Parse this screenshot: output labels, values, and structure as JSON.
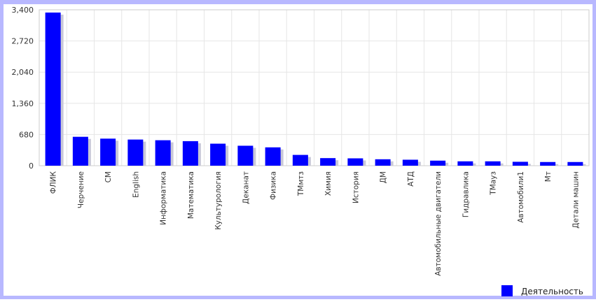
{
  "colors": {
    "border": "#b8b8ff",
    "bar": "#0000ff",
    "bar_shadow": "#c8c8d8",
    "grid": "#e6e6e6",
    "axis_text": "#333333"
  },
  "chart_data": {
    "type": "bar",
    "title": "",
    "xlabel": "",
    "ylabel": "",
    "ylim": [
      0,
      3400
    ],
    "yticks": [
      "0",
      "680",
      "1,360",
      "2,040",
      "2,720",
      "3,400"
    ],
    "ytick_values": [
      0,
      680,
      1360,
      2040,
      2720,
      3400
    ],
    "grid": true,
    "legend": "bottom-right",
    "categories": [
      "ФЛИК",
      "Черчение",
      "СМ",
      "English",
      "Информатика",
      "Математика",
      "Культурология",
      "Деканат",
      "Физика",
      "ТМмтз",
      "Химия",
      "История",
      "ДМ",
      "АТД",
      "Автомобильные двигатели",
      "Гидравлика",
      "ТМауз",
      "Автомобили1",
      "Мт",
      "Детали машин"
    ],
    "series": [
      {
        "name": "Деятельность",
        "values": [
          3340,
          630,
          590,
          570,
          555,
          535,
          480,
          435,
          400,
          235,
          165,
          160,
          140,
          130,
          110,
          95,
          95,
          85,
          80,
          80
        ]
      }
    ]
  }
}
